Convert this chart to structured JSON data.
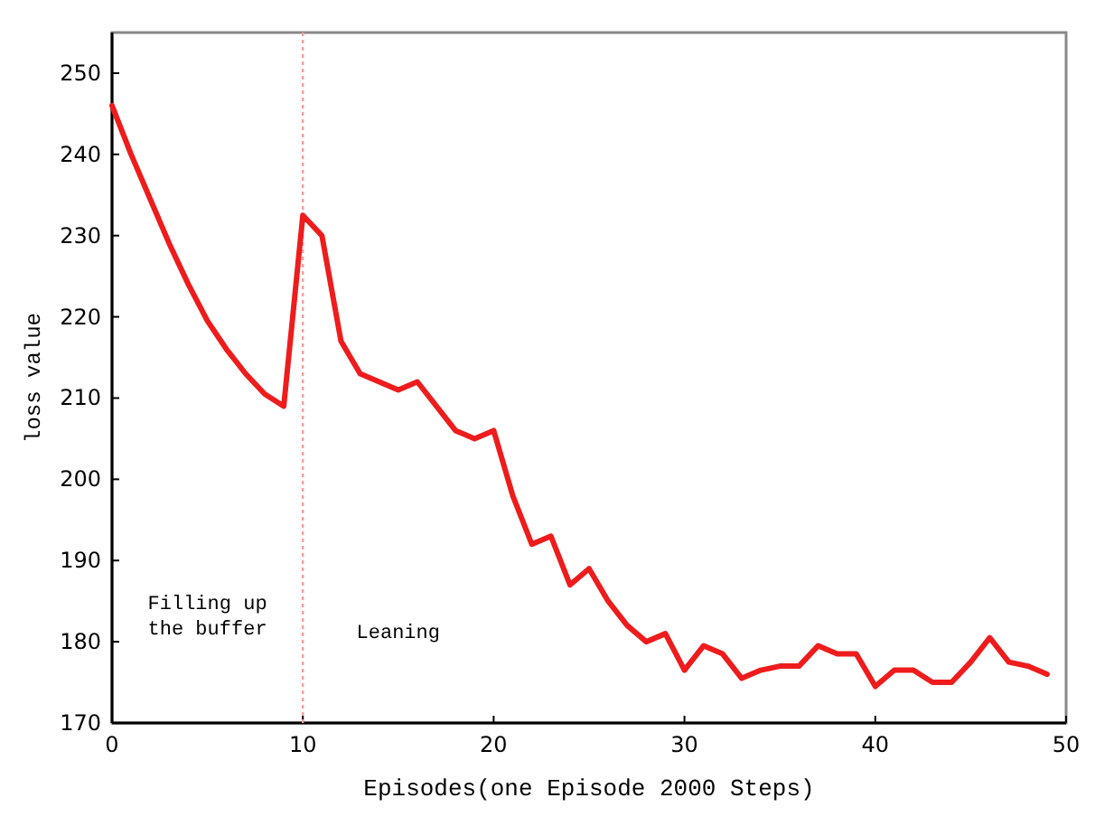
{
  "chart_data": {
    "type": "line",
    "xlabel": "Episodes(one Episode 2000 Steps)",
    "ylabel": "loss value",
    "x": [
      0,
      1,
      2,
      3,
      4,
      5,
      6,
      7,
      8,
      9,
      10,
      11,
      12,
      13,
      14,
      15,
      16,
      17,
      18,
      19,
      20,
      21,
      22,
      23,
      24,
      25,
      26,
      27,
      28,
      29,
      30,
      31,
      32,
      33,
      34,
      35,
      36,
      37,
      38,
      39,
      40,
      41,
      42,
      43,
      44,
      45,
      46,
      47,
      48,
      49
    ],
    "series": [
      {
        "color": "#ee1c1c",
        "values": [
          246,
          240,
          234.5,
          229,
          224,
          219.5,
          216,
          213,
          210.5,
          209,
          232.5,
          230,
          217,
          213,
          212,
          211,
          212,
          209,
          206,
          205,
          206,
          198,
          192,
          193,
          187,
          189,
          185,
          182,
          180,
          181,
          176.5,
          179.5,
          178.5,
          175.5,
          176.5,
          177,
          177,
          179.5,
          178.5,
          178.5,
          174.5,
          176.5,
          176.5,
          175,
          175,
          177.5,
          180.5,
          177.5,
          177,
          176
        ]
      }
    ],
    "xlim": [
      0,
      50
    ],
    "ylim": [
      170,
      255
    ],
    "xticks": [
      0,
      10,
      20,
      30,
      40,
      50
    ],
    "yticks": [
      170,
      180,
      190,
      200,
      210,
      220,
      230,
      240,
      250
    ],
    "ref_lines": [
      {
        "axis": "x",
        "value": 10,
        "color": "#f4a0a0",
        "line_style": "dotted"
      }
    ],
    "annotations": [
      "Filling up\nthe buffer",
      "Leaning"
    ],
    "grid": false,
    "marker": "none",
    "line_style": "solid"
  }
}
